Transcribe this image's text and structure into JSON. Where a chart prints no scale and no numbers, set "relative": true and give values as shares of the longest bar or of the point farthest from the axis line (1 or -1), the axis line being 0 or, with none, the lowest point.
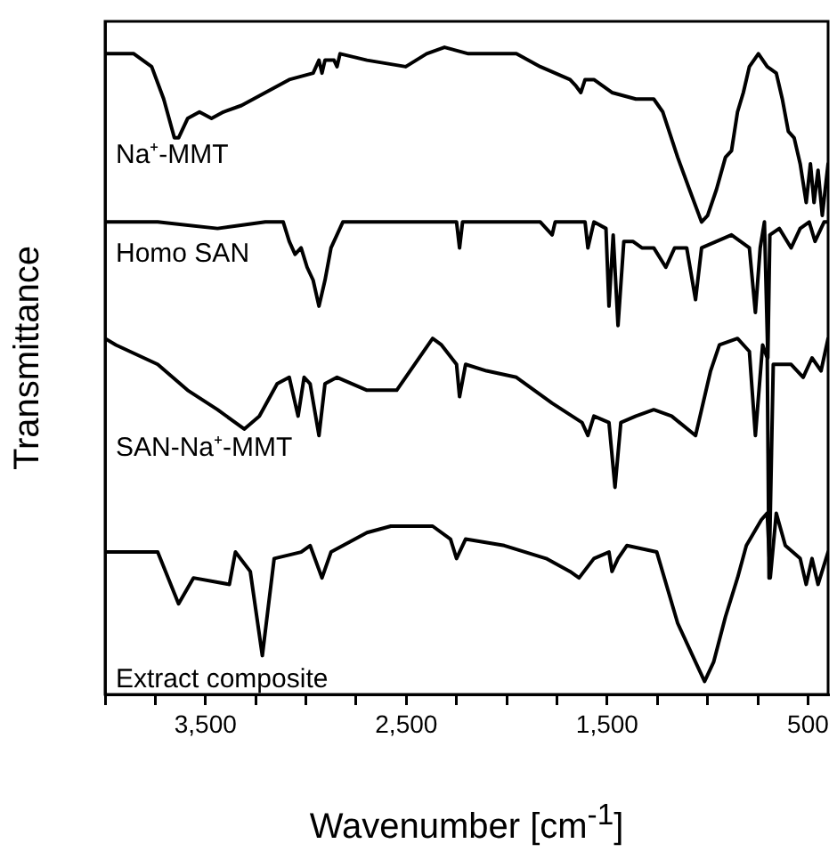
{
  "chart_data": {
    "type": "line",
    "relative": true,
    "xlabel": "Wavenumber [cm$^{-1}$]",
    "ylabel": "Transmittance",
    "xlim": [
      4000,
      400
    ],
    "xticks": [
      {
        "value": 4000,
        "label": null
      },
      {
        "value": 3750,
        "label": null
      },
      {
        "value": 3500,
        "label": "3,500"
      },
      {
        "value": 3250,
        "label": null
      },
      {
        "value": 3000,
        "label": null
      },
      {
        "value": 2750,
        "label": null
      },
      {
        "value": 2500,
        "label": "2,500"
      },
      {
        "value": 2250,
        "label": null
      },
      {
        "value": 2000,
        "label": null
      },
      {
        "value": 1750,
        "label": null
      },
      {
        "value": 1500,
        "label": "1,500"
      },
      {
        "value": 1250,
        "label": null
      },
      {
        "value": 1000,
        "label": null
      },
      {
        "value": 750,
        "label": null
      },
      500
    ],
    "tick_labels": "x",
    "grid": false,
    "legend": false,
    "marker": "none",
    "line_style": "solid",
    "series": [
      {
        "name": "Na⁺-MMT",
        "color": "#000000",
        "x": [
          4000,
          3917,
          3857,
          3768,
          3708,
          3655,
          3634,
          3589,
          3530,
          3470,
          3411,
          3321,
          3202,
          3083,
          2964,
          2935,
          2920,
          2905,
          2860,
          2845,
          2830,
          2696,
          2503,
          2399,
          2310,
          2191,
          2072,
          1952,
          1833,
          1685,
          1655,
          1631,
          1610,
          1566,
          1476,
          1357,
          1268,
          1223,
          1149,
          1090,
          1030,
          1000,
          956,
          911,
          881,
          851,
          822,
          792,
          747,
          703,
          658,
          628,
          598,
          569,
          539,
          509,
          488,
          470,
          450,
          429,
          400
        ],
        "values": [
          0.99,
          0.99,
          0.99,
          0.97,
          0.92,
          0.86,
          0.86,
          0.89,
          0.9,
          0.89,
          0.9,
          0.91,
          0.93,
          0.95,
          0.96,
          0.98,
          0.96,
          0.98,
          0.98,
          0.97,
          0.99,
          0.98,
          0.97,
          0.99,
          1,
          0.99,
          0.99,
          0.99,
          0.97,
          0.95,
          0.94,
          0.93,
          0.95,
          0.95,
          0.93,
          0.92,
          0.92,
          0.9,
          0.83,
          0.78,
          0.73,
          0.74,
          0.78,
          0.83,
          0.84,
          0.9,
          0.93,
          0.97,
          0.99,
          0.97,
          0.96,
          0.92,
          0.87,
          0.86,
          0.82,
          0.76,
          0.82,
          0.76,
          0.81,
          0.74,
          0.82
        ]
      },
      {
        "name": "Homo SAN",
        "color": "#000000",
        "x": [
          4000,
          3738,
          3440,
          3202,
          3113,
          3083,
          3054,
          3024,
          2994,
          2964,
          2935,
          2905,
          2875,
          2816,
          2697,
          2280,
          2250,
          2235,
          2220,
          1952,
          1833,
          1774,
          1759,
          1610,
          1596,
          1566,
          1506,
          1491,
          1470,
          1446,
          1417,
          1372,
          1327,
          1268,
          1208,
          1164,
          1104,
          1060,
          1030,
          881,
          792,
          762,
          738,
          717,
          700,
          690,
          643,
          584,
          539,
          494,
          465,
          420,
          400
        ],
        "values": [
          0.73,
          0.73,
          0.72,
          0.73,
          0.73,
          0.7,
          0.68,
          0.69,
          0.66,
          0.64,
          0.6,
          0.64,
          0.69,
          0.73,
          0.73,
          0.73,
          0.73,
          0.69,
          0.73,
          0.73,
          0.73,
          0.71,
          0.73,
          0.73,
          0.69,
          0.73,
          0.72,
          0.6,
          0.71,
          0.57,
          0.7,
          0.7,
          0.69,
          0.69,
          0.66,
          0.69,
          0.69,
          0.61,
          0.69,
          0.71,
          0.69,
          0.59,
          0.69,
          0.73,
          0.52,
          0.71,
          0.72,
          0.69,
          0.72,
          0.73,
          0.7,
          0.73,
          0.73
        ]
      },
      {
        "name": "SAN-Na⁺-MMT",
        "color": "#000000",
        "x": [
          4000,
          3946,
          3738,
          3589,
          3440,
          3307,
          3232,
          3143,
          3083,
          3039,
          3009,
          2979,
          2935,
          2905,
          2845,
          2696,
          2548,
          2369,
          2325,
          2250,
          2235,
          2205,
          2101,
          1952,
          1774,
          1625,
          1596,
          1566,
          1491,
          1461,
          1432,
          1357,
          1268,
          1179,
          1060,
          985,
          941,
          851,
          792,
          762,
          726,
          703,
          694,
          673,
          584,
          524,
          480,
          435,
          400
        ],
        "values": [
          0.55,
          0.54,
          0.51,
          0.47,
          0.44,
          0.41,
          0.43,
          0.48,
          0.49,
          0.43,
          0.49,
          0.48,
          0.4,
          0.48,
          0.49,
          0.47,
          0.47,
          0.55,
          0.54,
          0.51,
          0.46,
          0.51,
          0.5,
          0.49,
          0.45,
          0.42,
          0.4,
          0.43,
          0.42,
          0.32,
          0.42,
          0.43,
          0.44,
          0.43,
          0.4,
          0.5,
          0.54,
          0.55,
          0.53,
          0.4,
          0.54,
          0.52,
          0.18,
          0.51,
          0.51,
          0.49,
          0.52,
          0.5,
          0.55
        ]
      },
      {
        "name": "Extract composite",
        "color": "#000000",
        "x": [
          4000,
          3857,
          3738,
          3634,
          3560,
          3381,
          3351,
          3277,
          3217,
          3158,
          3024,
          2979,
          2920,
          2875,
          2696,
          2577,
          2369,
          2280,
          2250,
          2205,
          2012,
          1804,
          1685,
          1640,
          1566,
          1491,
          1476,
          1446,
          1402,
          1253,
          1149,
          1060,
          1015,
          970,
          911,
          851,
          807,
          732,
          703,
          688,
          658,
          613,
          539,
          509,
          480,
          450,
          400
        ],
        "values": [
          0.22,
          0.22,
          0.22,
          0.14,
          0.18,
          0.17,
          0.22,
          0.19,
          0.06,
          0.21,
          0.22,
          0.23,
          0.18,
          0.22,
          0.25,
          0.26,
          0.26,
          0.24,
          0.21,
          0.24,
          0.23,
          0.21,
          0.19,
          0.18,
          0.21,
          0.22,
          0.19,
          0.21,
          0.23,
          0.22,
          0.11,
          0.05,
          0.02,
          0.05,
          0.12,
          0.18,
          0.23,
          0.27,
          0.28,
          0.18,
          0.28,
          0.23,
          0.21,
          0.17,
          0.21,
          0.17,
          0.22
        ]
      }
    ]
  }
}
